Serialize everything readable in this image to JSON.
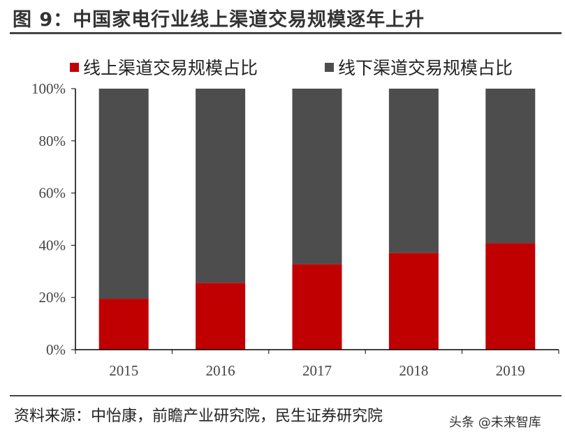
{
  "title": "图 9：中国家电行业线上渠道交易规模逐年上升",
  "source": "资料来源：中怡康，前瞻产业研究院，民生证券研究院",
  "watermark": "头条 @未来智库",
  "chart_data": {
    "type": "bar",
    "stacked": true,
    "categories": [
      "2015",
      "2016",
      "2017",
      "2018",
      "2019"
    ],
    "series": [
      {
        "name": "线上渠道交易规模占比",
        "color": "#C00000",
        "values": [
          19.5,
          25.6,
          32.8,
          37.1,
          40.8
        ]
      },
      {
        "name": "线下渠道交易规模占比",
        "color": "#4D4D4D",
        "values": [
          80.5,
          74.4,
          67.2,
          62.9,
          59.2
        ]
      }
    ],
    "ylim": [
      0,
      100
    ],
    "yticks": [
      "0%",
      "20%",
      "40%",
      "60%",
      "80%",
      "100%"
    ],
    "legend": "top",
    "grid": false
  }
}
